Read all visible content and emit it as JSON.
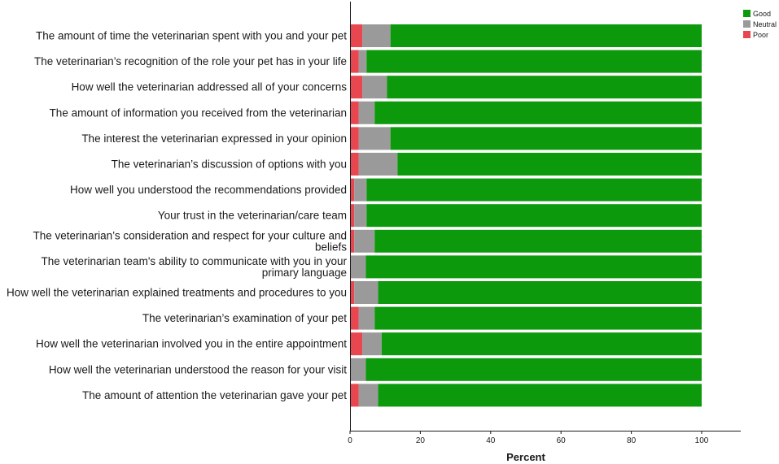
{
  "chart_data": {
    "type": "bar",
    "orientation": "horizontal",
    "stacked": true,
    "xlabel": "Percent",
    "xlim": [
      0,
      100
    ],
    "xticks": [
      "0",
      "20",
      "40",
      "60",
      "80",
      "100"
    ],
    "grid": false,
    "legend_position": "top-right",
    "categories": [
      "The amount of time the veterinarian spent with you and your pet",
      "The veterinarian’s recognition of the role your pet has in your life",
      "How well the veterinarian addressed all of your concerns",
      "The amount of information you received from the veterinarian",
      "The interest the veterinarian expressed in your opinion",
      "The veterinarian’s discussion of options with you",
      "How well you understood the recommendations provided",
      "Your trust in the veterinarian/care team",
      "The veterinarian’s consideration and respect for your culture and beliefs",
      "The veterinarian team's ability to communicate with you in your primary language",
      "How well the veterinarian explained treatments and procedures to you",
      "The veterinarian’s examination of your pet",
      "How well the veterinarian involved you in the entire appointment",
      "How well the veterinarian understood the reason for your visit",
      "The amount of attention the veterinarian gave your pet"
    ],
    "series": [
      {
        "name": "Poor",
        "color": "#e8474f",
        "values": [
          3.5,
          2.5,
          3.5,
          2.5,
          2.5,
          2.5,
          1.2,
          1.2,
          1.2,
          0,
          1.2,
          2.5,
          3.5,
          0,
          2.5
        ]
      },
      {
        "name": "Neutral",
        "color": "#9a9a9a",
        "values": [
          8,
          2.2,
          7,
          4.5,
          9,
          11,
          3.5,
          3.5,
          5.8,
          4.5,
          6.8,
          4.5,
          5.5,
          4.5,
          5.5
        ]
      },
      {
        "name": "Good",
        "color": "#0c9a0c",
        "values": [
          88.5,
          95.3,
          89.5,
          93,
          88.5,
          86.5,
          95.3,
          95.3,
          93,
          95.5,
          92,
          93,
          91,
          95.5,
          92
        ]
      }
    ],
    "legend": [
      {
        "label": "Good",
        "color": "#0c9a0c"
      },
      {
        "label": "Neutral",
        "color": "#9a9a9a"
      },
      {
        "label": "Poor",
        "color": "#e8474f"
      }
    ]
  }
}
